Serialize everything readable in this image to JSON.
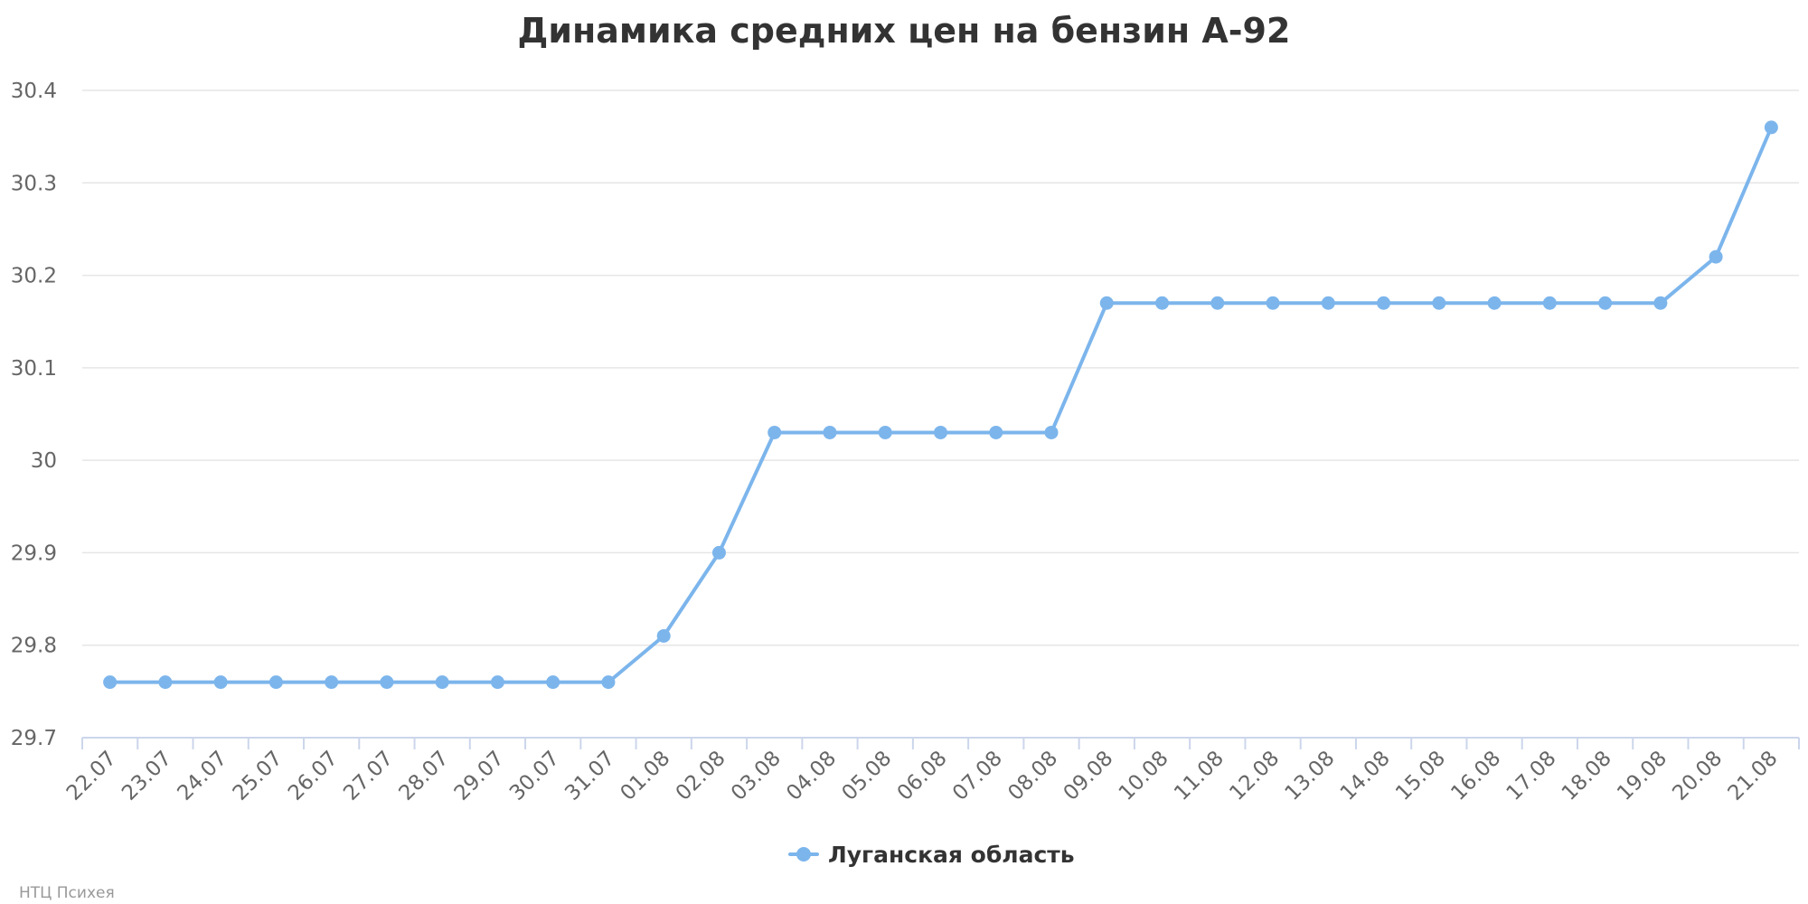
{
  "chart_data": {
    "type": "line",
    "title": "Динамика средних цен на бензин А-92",
    "xlabel": "",
    "ylabel": "",
    "categories": [
      "22.07",
      "23.07",
      "24.07",
      "25.07",
      "26.07",
      "27.07",
      "28.07",
      "29.07",
      "30.07",
      "31.07",
      "01.08",
      "02.08",
      "03.08",
      "04.08",
      "05.08",
      "06.08",
      "07.08",
      "08.08",
      "09.08",
      "10.08",
      "11.08",
      "12.08",
      "13.08",
      "14.08",
      "15.08",
      "16.08",
      "17.08",
      "18.08",
      "19.08",
      "20.08",
      "21.08"
    ],
    "series": [
      {
        "name": "Луганская область",
        "color": "#7cb5ec",
        "values": [
          29.76,
          29.76,
          29.76,
          29.76,
          29.76,
          29.76,
          29.76,
          29.76,
          29.76,
          29.76,
          29.81,
          29.9,
          30.03,
          30.03,
          30.03,
          30.03,
          30.03,
          30.03,
          30.17,
          30.17,
          30.17,
          30.17,
          30.17,
          30.17,
          30.17,
          30.17,
          30.17,
          30.17,
          30.17,
          30.22,
          30.36
        ]
      }
    ],
    "ylim": [
      29.7,
      30.4
    ],
    "yticks": [
      "29.7",
      "29.8",
      "29.9",
      "30",
      "30.1",
      "30.2",
      "30.3",
      "30.4"
    ],
    "grid": true,
    "legend_position": "bottom-center"
  },
  "credits": "НТЦ Психея",
  "colors": {
    "series": "#7cb5ec",
    "grid": "#e6e6e6",
    "axis": "#ccd6eb",
    "text": "#333333",
    "tick_text": "#666666",
    "credit_text": "#999999"
  }
}
